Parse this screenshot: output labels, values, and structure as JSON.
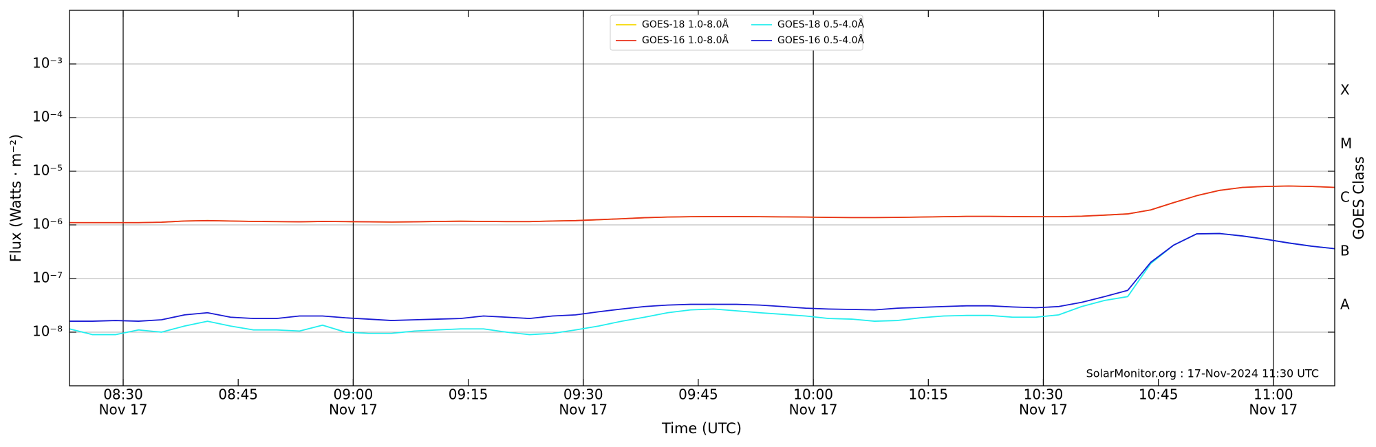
{
  "chart_data": {
    "type": "line",
    "x_label": "Time (UTC)",
    "y_label": "Flux (Watts · m⁻²)",
    "y2_label": "GOES Class",
    "annotation": "SolarMonitor.org : 17-Nov-2024 11:30 UTC",
    "log_y": true,
    "grid": true,
    "legend": "upper center",
    "x": [
      "08:23",
      "08:26",
      "08:29",
      "08:32",
      "08:35",
      "08:38",
      "08:41",
      "08:44",
      "08:47",
      "08:50",
      "08:53",
      "08:56",
      "08:59",
      "09:02",
      "09:05",
      "09:08",
      "09:11",
      "09:14",
      "09:17",
      "09:20",
      "09:23",
      "09:26",
      "09:29",
      "09:32",
      "09:35",
      "09:38",
      "09:41",
      "09:44",
      "09:47",
      "09:50",
      "09:53",
      "09:56",
      "09:59",
      "10:02",
      "10:05",
      "10:08",
      "10:11",
      "10:14",
      "10:17",
      "10:20",
      "10:23",
      "10:26",
      "10:29",
      "10:32",
      "10:35",
      "10:38",
      "10:41",
      "10:44",
      "10:47",
      "10:50",
      "10:53",
      "10:56",
      "10:59",
      "11:02",
      "11:05",
      "11:08"
    ],
    "xlim": [
      "08:23",
      "11:08"
    ],
    "xticks": [
      "08:30",
      "08:45",
      "09:00",
      "09:15",
      "09:30",
      "09:45",
      "10:00",
      "10:15",
      "10:30",
      "10:45",
      "11:00"
    ],
    "xtick_dates": [
      "Nov 17",
      null,
      "Nov 17",
      null,
      "Nov 17",
      null,
      "Nov 17",
      null,
      "Nov 17",
      null,
      "Nov 17"
    ],
    "ylim": [
      1e-09,
      0.01
    ],
    "yticks": [
      {
        "value": 1e-08,
        "label": "10⁻⁸"
      },
      {
        "value": 1e-07,
        "label": "10⁻⁷"
      },
      {
        "value": 1e-06,
        "label": "10⁻⁶"
      },
      {
        "value": 1e-05,
        "label": "10⁻⁵"
      },
      {
        "value": 0.0001,
        "label": "10⁻⁴"
      },
      {
        "value": 0.001,
        "label": "10⁻³"
      }
    ],
    "y2lim": [
      1e-09,
      0.01
    ],
    "y2ticks": [
      {
        "value": 3.16e-08,
        "label": "A"
      },
      {
        "value": 3.16e-07,
        "label": "B"
      },
      {
        "value": 3.16e-06,
        "label": "C"
      },
      {
        "value": 3.16e-05,
        "label": "M"
      },
      {
        "value": 0.000316,
        "label": "X"
      }
    ],
    "series": [
      {
        "name": "GOES-18 1.0-8.0Å",
        "color": "#f5d800",
        "values": [
          1.1e-06,
          1.1e-06,
          1.1e-06,
          1.1e-06,
          1.12e-06,
          1.18e-06,
          1.2e-06,
          1.18e-06,
          1.16e-06,
          1.15e-06,
          1.14e-06,
          1.16e-06,
          1.15e-06,
          1.14e-06,
          1.13e-06,
          1.14e-06,
          1.16e-06,
          1.17e-06,
          1.16e-06,
          1.15e-06,
          1.15e-06,
          1.18e-06,
          1.2e-06,
          1.25e-06,
          1.3e-06,
          1.36e-06,
          1.4e-06,
          1.42e-06,
          1.43e-06,
          1.43e-06,
          1.42e-06,
          1.41e-06,
          1.4e-06,
          1.38e-06,
          1.37e-06,
          1.37e-06,
          1.38e-06,
          1.4e-06,
          1.42e-06,
          1.44e-06,
          1.44e-06,
          1.43e-06,
          1.42e-06,
          1.42e-06,
          1.45e-06,
          1.52e-06,
          1.6e-06,
          1.9e-06,
          2.6e-06,
          3.5e-06,
          4.4e-06,
          5e-06,
          5.2e-06,
          5.3e-06,
          5.2e-06,
          5e-06
        ]
      },
      {
        "name": "GOES-16 1.0-8.0Å",
        "color": "#e8301a",
        "values": [
          1.1e-06,
          1.1e-06,
          1.1e-06,
          1.1e-06,
          1.12e-06,
          1.18e-06,
          1.2e-06,
          1.18e-06,
          1.16e-06,
          1.15e-06,
          1.14e-06,
          1.16e-06,
          1.15e-06,
          1.14e-06,
          1.13e-06,
          1.14e-06,
          1.16e-06,
          1.17e-06,
          1.16e-06,
          1.15e-06,
          1.15e-06,
          1.18e-06,
          1.2e-06,
          1.25e-06,
          1.3e-06,
          1.36e-06,
          1.4e-06,
          1.42e-06,
          1.43e-06,
          1.43e-06,
          1.42e-06,
          1.41e-06,
          1.4e-06,
          1.38e-06,
          1.37e-06,
          1.37e-06,
          1.38e-06,
          1.4e-06,
          1.42e-06,
          1.44e-06,
          1.44e-06,
          1.43e-06,
          1.42e-06,
          1.42e-06,
          1.45e-06,
          1.52e-06,
          1.6e-06,
          1.9e-06,
          2.6e-06,
          3.5e-06,
          4.4e-06,
          5e-06,
          5.2e-06,
          5.3e-06,
          5.2e-06,
          5e-06
        ]
      },
      {
        "name": "GOES-18 0.5-4.0Å",
        "color": "#22eeee",
        "values": [
          1.15e-08,
          9e-09,
          9e-09,
          1.1e-08,
          1e-08,
          1.3e-08,
          1.6e-08,
          1.3e-08,
          1.1e-08,
          1.1e-08,
          1.05e-08,
          1.35e-08,
          1e-08,
          9.5e-09,
          9.5e-09,
          1.05e-08,
          1.1e-08,
          1.15e-08,
          1.15e-08,
          1e-08,
          9e-09,
          9.5e-09,
          1.1e-08,
          1.3e-08,
          1.6e-08,
          1.9e-08,
          2.3e-08,
          2.6e-08,
          2.7e-08,
          2.5e-08,
          2.3e-08,
          2.15e-08,
          2e-08,
          1.8e-08,
          1.75e-08,
          1.6e-08,
          1.65e-08,
          1.85e-08,
          2e-08,
          2.05e-08,
          2.05e-08,
          1.9e-08,
          1.9e-08,
          2.1e-08,
          3e-08,
          3.9e-08,
          4.6e-08,
          1.9e-07,
          4.2e-07,
          6.8e-07,
          6.9e-07,
          6.2e-07,
          5.4e-07,
          4.6e-07,
          4e-07,
          3.6e-07
        ]
      },
      {
        "name": "GOES-16 0.5-4.0Å",
        "color": "#1a1ad4",
        "values": [
          1.6e-08,
          1.6e-08,
          1.65e-08,
          1.6e-08,
          1.7e-08,
          2.1e-08,
          2.3e-08,
          1.9e-08,
          1.8e-08,
          1.8e-08,
          2e-08,
          2e-08,
          1.85e-08,
          1.75e-08,
          1.65e-08,
          1.7e-08,
          1.75e-08,
          1.8e-08,
          2e-08,
          1.9e-08,
          1.8e-08,
          2e-08,
          2.1e-08,
          2.4e-08,
          2.7e-08,
          3e-08,
          3.2e-08,
          3.3e-08,
          3.3e-08,
          3.3e-08,
          3.2e-08,
          3e-08,
          2.8e-08,
          2.7e-08,
          2.65e-08,
          2.6e-08,
          2.8e-08,
          2.9e-08,
          3e-08,
          3.1e-08,
          3.1e-08,
          2.95e-08,
          2.85e-08,
          3e-08,
          3.6e-08,
          4.6e-08,
          6e-08,
          2e-07,
          4.2e-07,
          6.8e-07,
          6.9e-07,
          6.2e-07,
          5.4e-07,
          4.6e-07,
          4e-07,
          3.6e-07
        ]
      }
    ]
  }
}
